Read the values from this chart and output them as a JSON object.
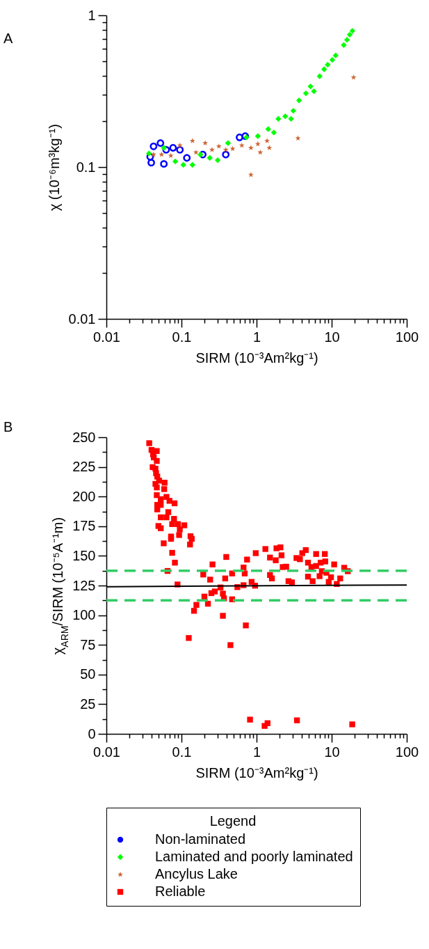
{
  "chart_data": [
    {
      "type": "scatter",
      "annotations": [
        "A"
      ],
      "xlabel": "SIRM (10⁻³Am²kg⁻¹)",
      "ylabel": "χ (10⁻⁶m³kg⁻¹)",
      "log": "xy",
      "legend": "bottom",
      "xlim": [
        0.01,
        100
      ],
      "xticks": [
        0.01,
        {
          "value": 0.02,
          "label": null
        },
        {
          "value": 0.03,
          "label": null
        },
        {
          "value": 0.04,
          "label": null
        },
        {
          "value": 0.05,
          "label": null
        },
        {
          "value": 0.06,
          "label": null
        },
        {
          "value": 0.07,
          "label": null
        },
        {
          "value": 0.08,
          "label": null
        },
        {
          "value": 0.09,
          "label": null
        },
        0.1,
        {
          "value": 0.2,
          "label": null
        },
        {
          "value": 0.3,
          "label": null
        },
        {
          "value": 0.4,
          "label": null
        },
        {
          "value": 0.5,
          "label": null
        },
        {
          "value": 0.6,
          "label": null
        },
        {
          "value": 0.7,
          "label": null
        },
        {
          "value": 0.8,
          "label": null
        },
        {
          "value": 0.9,
          "label": null
        },
        1,
        {
          "value": 2,
          "label": null
        },
        {
          "value": 3,
          "label": null
        },
        {
          "value": 4,
          "label": null
        },
        {
          "value": 5,
          "label": null
        },
        {
          "value": 6,
          "label": null
        },
        {
          "value": 7,
          "label": null
        },
        {
          "value": 8,
          "label": null
        },
        {
          "value": 9,
          "label": null
        },
        10,
        {
          "value": 20,
          "label": null
        },
        {
          "value": 30,
          "label": null
        },
        {
          "value": 40,
          "label": null
        },
        {
          "value": 50,
          "label": null
        },
        {
          "value": 60,
          "label": null
        },
        {
          "value": 70,
          "label": null
        },
        {
          "value": 80,
          "label": null
        },
        {
          "value": 90,
          "label": null
        },
        100
      ],
      "ylim": [
        0.01,
        1
      ],
      "yticks": [
        0.01,
        {
          "value": 0.02,
          "label": null
        },
        {
          "value": 0.03,
          "label": null
        },
        {
          "value": 0.04,
          "label": null
        },
        {
          "value": 0.05,
          "label": null
        },
        {
          "value": 0.06,
          "label": null
        },
        {
          "value": 0.07,
          "label": null
        },
        {
          "value": 0.08,
          "label": null
        },
        {
          "value": 0.09,
          "label": null
        },
        0.1,
        {
          "value": 0.2,
          "label": null
        },
        {
          "value": 0.3,
          "label": null
        },
        {
          "value": 0.4,
          "label": null
        },
        {
          "value": 0.5,
          "label": null
        },
        {
          "value": 0.6,
          "label": null
        },
        {
          "value": 0.7,
          "label": null
        },
        {
          "value": 0.8,
          "label": null
        },
        {
          "value": 0.9,
          "label": null
        },
        1
      ],
      "series": [
        {
          "name": "Non-laminated",
          "color": "#0000ff",
          "marker": "circle",
          "x": [
            0.0396,
            0.0425,
            0.0525,
            0.0583,
            0.0625,
            0.0773,
            0.0953,
            0.118,
            0.192,
            0.389,
            0.593,
            0.706,
            0.0383
          ],
          "values": [
            0.107,
            0.137,
            0.144,
            0.105,
            0.13,
            0.134,
            0.13,
            0.115,
            0.121,
            0.121,
            0.157,
            0.16,
            0.117
          ]
        },
        {
          "name": "Laminated and poorly laminated",
          "color": "#00ff00",
          "marker": "diamond",
          "x": [
            0.0369,
            0.0583,
            0.0828,
            0.106,
            0.14,
            0.179,
            0.238,
            0.304,
            0.417,
            0.732,
            1.04,
            1.43,
            1.7,
            1.95,
            2.41,
            2.88,
            3.09,
            3.68,
            4.54,
            5.23,
            5.81,
            6.92,
            7.94,
            8.85,
            10.2,
            11.3,
            14.5,
            16,
            17.4,
            18.9
          ],
          "values": [
            0.123,
            0.134,
            0.109,
            0.1035,
            0.1035,
            0.121,
            0.115,
            0.111,
            0.144,
            0.157,
            0.16,
            0.178,
            0.169,
            0.208,
            0.216,
            0.208,
            0.235,
            0.275,
            0.306,
            0.34,
            0.316,
            0.397,
            0.441,
            0.473,
            0.508,
            0.544,
            0.637,
            0.69,
            0.745,
            0.79
          ]
        },
        {
          "name": "Ancylus Lake",
          "color": "#cc6633",
          "marker": "star",
          "x": [
            0.0425,
            0.0543,
            0.0721,
            0.0953,
            0.14,
            0.156,
            0.207,
            0.255,
            0.315,
            0.389,
            0.48,
            0.636,
            0.841,
            1.04,
            1.38,
            1.48,
            3.56,
            0.841,
            19.6,
            1.12
          ],
          "values": [
            0.121,
            0.121,
            0.119,
            0.139,
            0.149,
            0.125,
            0.144,
            0.13,
            0.137,
            0.13,
            0.132,
            0.139,
            0.134,
            0.142,
            0.149,
            0.134,
            0.155,
            0.089,
            0.39,
            0.125
          ]
        }
      ]
    },
    {
      "type": "scatter",
      "annotations": [
        "B"
      ],
      "xlabel": "SIRM (10⁻³Am²kg⁻¹)",
      "ylabel": "χ$_{ARM}$/SIRM (10⁻⁵A⁻¹m)",
      "log": "x",
      "legend": "bottom",
      "legend_title": "Legend",
      "xlim": [
        0.01,
        100
      ],
      "xticks": [
        0.01,
        {
          "value": 0.02,
          "label": null
        },
        {
          "value": 0.03,
          "label": null
        },
        {
          "value": 0.04,
          "label": null
        },
        {
          "value": 0.05,
          "label": null
        },
        {
          "value": 0.06,
          "label": null
        },
        {
          "value": 0.07,
          "label": null
        },
        {
          "value": 0.08,
          "label": null
        },
        {
          "value": 0.09,
          "label": null
        },
        0.1,
        {
          "value": 0.2,
          "label": null
        },
        {
          "value": 0.3,
          "label": null
        },
        {
          "value": 0.4,
          "label": null
        },
        {
          "value": 0.5,
          "label": null
        },
        {
          "value": 0.6,
          "label": null
        },
        {
          "value": 0.7,
          "label": null
        },
        {
          "value": 0.8,
          "label": null
        },
        {
          "value": 0.9,
          "label": null
        },
        1,
        {
          "value": 2,
          "label": null
        },
        {
          "value": 3,
          "label": null
        },
        {
          "value": 4,
          "label": null
        },
        {
          "value": 5,
          "label": null
        },
        {
          "value": 6,
          "label": null
        },
        {
          "value": 7,
          "label": null
        },
        {
          "value": 8,
          "label": null
        },
        {
          "value": 9,
          "label": null
        },
        10,
        {
          "value": 20,
          "label": null
        },
        {
          "value": 30,
          "label": null
        },
        {
          "value": 40,
          "label": null
        },
        {
          "value": 50,
          "label": null
        },
        {
          "value": 60,
          "label": null
        },
        {
          "value": 70,
          "label": null
        },
        {
          "value": 80,
          "label": null
        },
        {
          "value": 90,
          "label": null
        },
        100
      ],
      "ylim": [
        0,
        250
      ],
      "yticks": [
        0,
        {
          "value": 12.5,
          "label": null
        },
        25,
        {
          "value": 37.5,
          "label": null
        },
        50,
        {
          "value": 62.5,
          "label": null
        },
        75,
        {
          "value": 87.5,
          "label": null
        },
        100,
        {
          "value": 112.5,
          "label": null
        },
        125,
        {
          "value": 137.5,
          "label": null
        },
        150,
        {
          "value": 162.5,
          "label": null
        },
        175,
        {
          "value": 187.5,
          "label": null
        },
        200,
        {
          "value": 212.5,
          "label": null
        },
        225,
        {
          "value": 237.5,
          "label": null
        },
        250
      ],
      "ref_lines": [
        {
          "axis": "y",
          "value": 137.5,
          "color": "#33cc66",
          "line_style": "dashed"
        },
        {
          "axis": "y",
          "value": 112.5,
          "color": "#33cc66",
          "line_style": "dashed"
        }
      ],
      "series": [
        {
          "name": "Reliable",
          "color": "#ff0000",
          "marker": "square",
          "x": [
            0.0372,
            0.0399,
            0.0469,
            0.0419,
            0.0428,
            0.0469,
            0.0413,
            0.045,
            0.0459,
            0.0476,
            0.0503,
            0.045,
            0.0596,
            0.0469,
            0.0589,
            0.0469,
            0.0631,
            0.053,
            0.0692,
            0.0809,
            0.0476,
            0.053,
            0.0476,
            0.0668,
            0.053,
            0.0631,
            0.0796,
            0.0752,
            0.0898,
            0.109,
            0.0493,
            0.053,
            0.095,
            0.0727,
            0.093,
            0.132,
            0.058,
            0.0726,
            0.137,
            0.13,
            0.0752,
            0.0818,
            0.0653,
            0.0885,
            0.147,
            0.158,
            0.195,
            0.225,
            0.202,
            0.25,
            0.259,
            0.241,
            0.278,
            0.331,
            0.356,
            0.368,
            0.395,
            0.382,
            0.472,
            0.472,
            0.356,
            0.555,
            0.671,
            0.671,
            0.695,
            0.747,
            0.859,
            0.955,
            0.975,
            0.72,
            1.31,
            1.51,
            1.8,
            1.84,
            2.08,
            2.15,
            2.23,
            2.48,
            1.51,
            1.6,
            2.66,
            2.96,
            3.4,
            3.78,
            4.06,
            4.52,
            4.84,
            4.84,
            5.58,
            6.21,
            8.11,
            5.38,
            6.21,
            7.13,
            8.22,
            7.4,
            6.9,
            8.51,
            9.14,
            9.8,
            10.8,
            11.7,
            13,
            14.7,
            16.4,
            0.125,
            0.449,
            0.818,
            1.28,
            1.4,
            3.45,
            18.8
          ],
          "values": [
            245,
            239.3,
            238.4,
            235.5,
            233,
            230,
            224.8,
            223.5,
            219.7,
            216.8,
            213.4,
            210.7,
            211.7,
            207.7,
            206.3,
            201.2,
            199.7,
            197.8,
            196.4,
            194.3,
            193,
            193,
            189.2,
            186.9,
            182.5,
            182.5,
            181.2,
            176.8,
            176.8,
            175.8,
            175.2,
            173.3,
            172.4,
            166.3,
            167.6,
            166.6,
            160.6,
            164.4,
            164.4,
            159.6,
            152.6,
            144.3,
            137.3,
            125.9,
            103.7,
            108.7,
            134.3,
            109.7,
            115.7,
            118.6,
            142.8,
            130,
            120,
            123.4,
            118.2,
            114.2,
            149.1,
            131,
            135.2,
            113.4,
            99.5,
            123.7,
            125.3,
            140.2,
            135.2,
            146.9,
            128.1,
            124.9,
            152.3,
            91.4,
            155.8,
            148.6,
            146.3,
            156.4,
            157.2,
            150.5,
            140.6,
            140.9,
            133.9,
            131,
            128.7,
            127.7,
            148.2,
            147.2,
            152.3,
            154.9,
            144.3,
            132.5,
            128.7,
            151.6,
            151.6,
            140.6,
            141.5,
            144.3,
            145.3,
            137.1,
            132.9,
            135.8,
            128.1,
            132,
            142.8,
            126.3,
            131,
            140,
            137.1,
            80.8,
            74.8,
            12,
            6.7,
            9,
            11.4,
            8
          ]
        },
        {
          "type": "line",
          "color": "#000000",
          "x": [
            0.01,
            100
          ],
          "values": [
            124,
            125.5
          ]
        }
      ]
    }
  ]
}
